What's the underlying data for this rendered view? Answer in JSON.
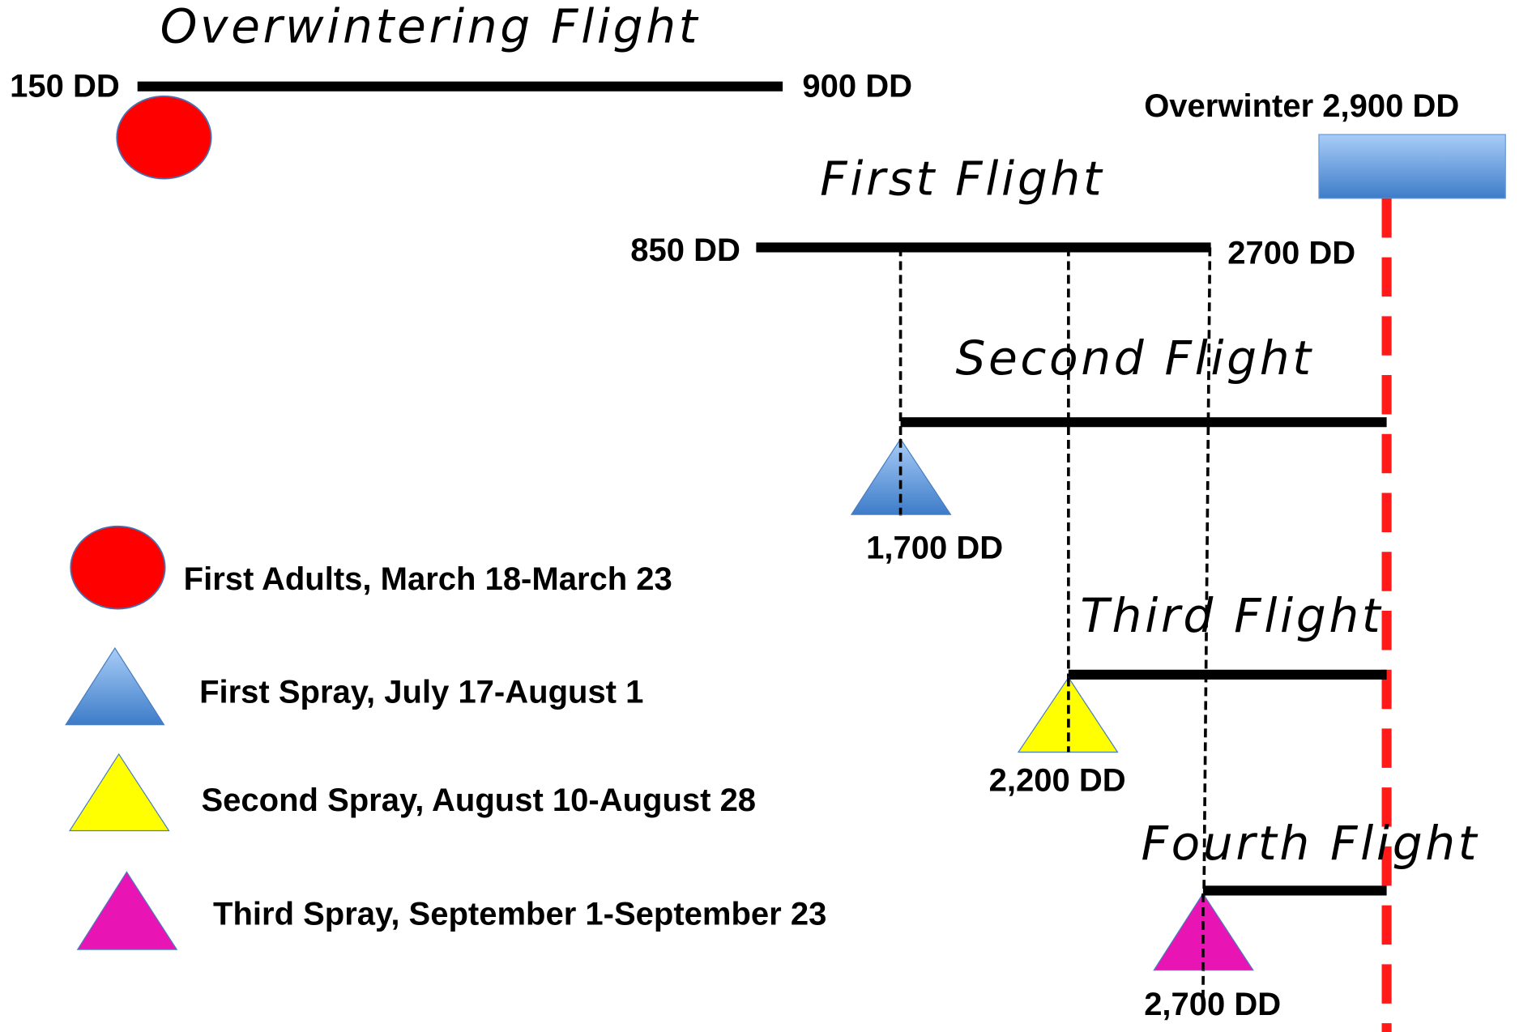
{
  "flights": [
    {
      "title": "Overwintering Flight",
      "start": "150 DD",
      "end": "900 DD"
    },
    {
      "title": "First Flight",
      "start": "850 DD",
      "end": "2700 DD"
    },
    {
      "title": "Second Flight"
    },
    {
      "title": "Third Flight"
    },
    {
      "title": "Fourth Flight"
    }
  ],
  "overwinter": "Overwinter 2,900 DD",
  "spray_points": [
    "1,700 DD",
    "2,200 DD",
    "2,700 DD"
  ],
  "legend": [
    "First Adults, March 18-March 23",
    "First Spray, July 17-August 1",
    "Second Spray, August 10-August 28",
    "Third Spray, September 1-September 23"
  ]
}
